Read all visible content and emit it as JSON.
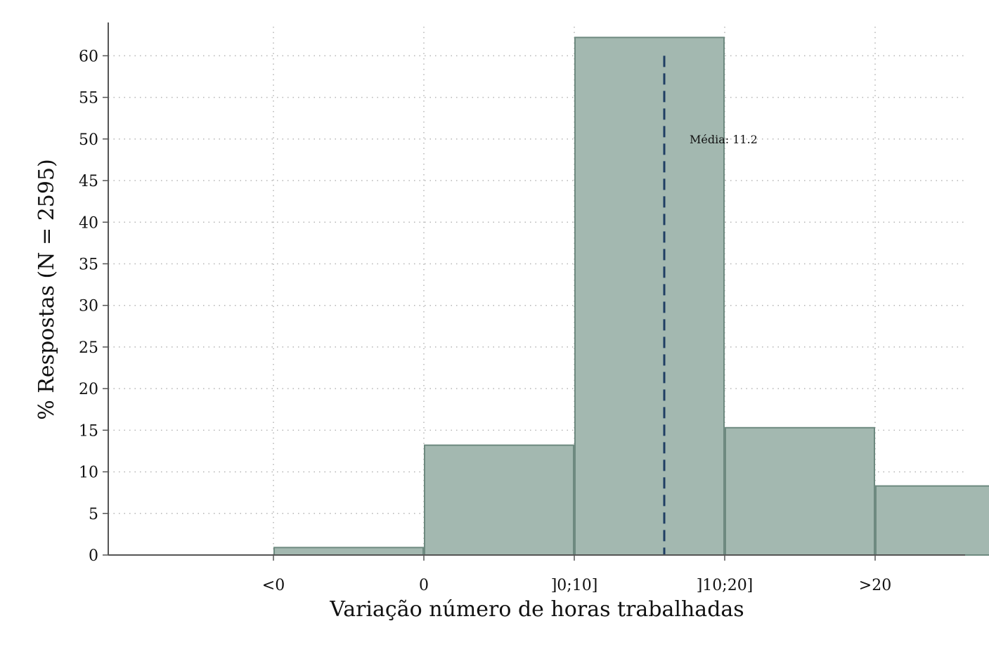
{
  "chart_data": {
    "type": "bar",
    "title": "",
    "xlabel": "Variação número de horas trabalhadas",
    "ylabel": "% Respostas (N = 2595)",
    "categories": [
      "<0",
      "0",
      "]0;10]",
      "]10;20]",
      ">20"
    ],
    "values": [
      0.9,
      13.2,
      62.2,
      15.3,
      8.3
    ],
    "ylim": [
      0,
      64
    ],
    "yticks": [
      0,
      5,
      10,
      15,
      20,
      25,
      30,
      35,
      40,
      45,
      50,
      55,
      60
    ],
    "grid": true,
    "legend": "none",
    "mean": {
      "label": "Média: 11.2",
      "value": 11.2
    },
    "colors": {
      "bar_fill": "#a3b8b0",
      "bar_stroke": "#6e8a80",
      "mean_line": "#1f3e63",
      "grid": "#b5b5b5",
      "axis": "#555555"
    }
  }
}
